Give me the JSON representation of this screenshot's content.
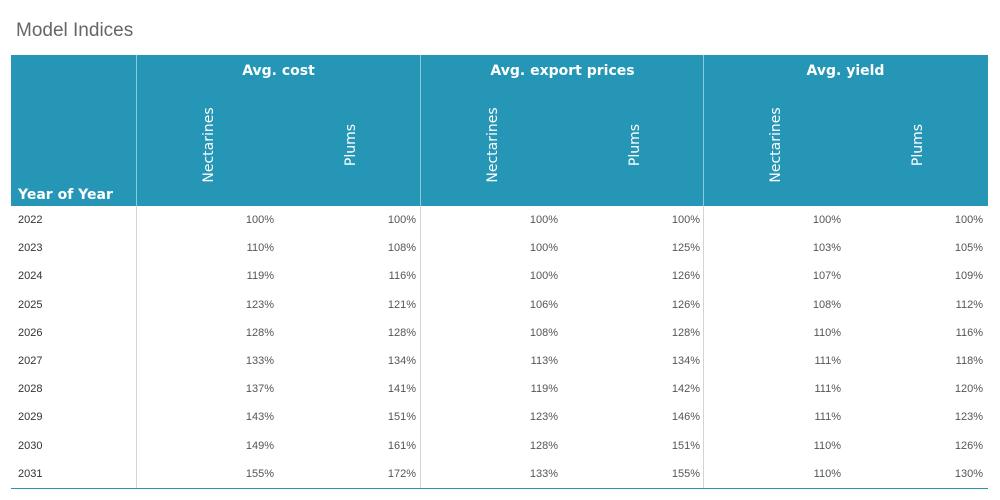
{
  "title": "Model Indices",
  "chart_data": {
    "type": "table",
    "row_header": "Year of Year",
    "groups": [
      {
        "name": "Avg. cost",
        "columns": [
          "Nectarines",
          "Plums"
        ]
      },
      {
        "name": "Avg. export prices",
        "columns": [
          "Nectarines",
          "Plums"
        ]
      },
      {
        "name": "Avg. yield",
        "columns": [
          "Nectarines",
          "Plums"
        ]
      }
    ],
    "rows": [
      {
        "year": "2022",
        "values": [
          "100%",
          "100%",
          "100%",
          "100%",
          "100%",
          "100%"
        ]
      },
      {
        "year": "2023",
        "values": [
          "110%",
          "108%",
          "100%",
          "125%",
          "103%",
          "105%"
        ]
      },
      {
        "year": "2024",
        "values": [
          "119%",
          "116%",
          "100%",
          "126%",
          "107%",
          "109%"
        ]
      },
      {
        "year": "2025",
        "values": [
          "123%",
          "121%",
          "106%",
          "126%",
          "108%",
          "112%"
        ]
      },
      {
        "year": "2026",
        "values": [
          "128%",
          "128%",
          "108%",
          "128%",
          "110%",
          "116%"
        ]
      },
      {
        "year": "2027",
        "values": [
          "133%",
          "134%",
          "113%",
          "134%",
          "111%",
          "118%"
        ]
      },
      {
        "year": "2028",
        "values": [
          "137%",
          "141%",
          "119%",
          "142%",
          "111%",
          "120%"
        ]
      },
      {
        "year": "2029",
        "values": [
          "143%",
          "151%",
          "123%",
          "146%",
          "111%",
          "123%"
        ]
      },
      {
        "year": "2030",
        "values": [
          "149%",
          "161%",
          "128%",
          "151%",
          "110%",
          "126%"
        ]
      },
      {
        "year": "2031",
        "values": [
          "155%",
          "172%",
          "133%",
          "155%",
          "110%",
          "130%"
        ]
      }
    ]
  },
  "colors": {
    "header_bg": "#2596b6",
    "header_text": "#ffffff",
    "cell_text": "#555555"
  }
}
